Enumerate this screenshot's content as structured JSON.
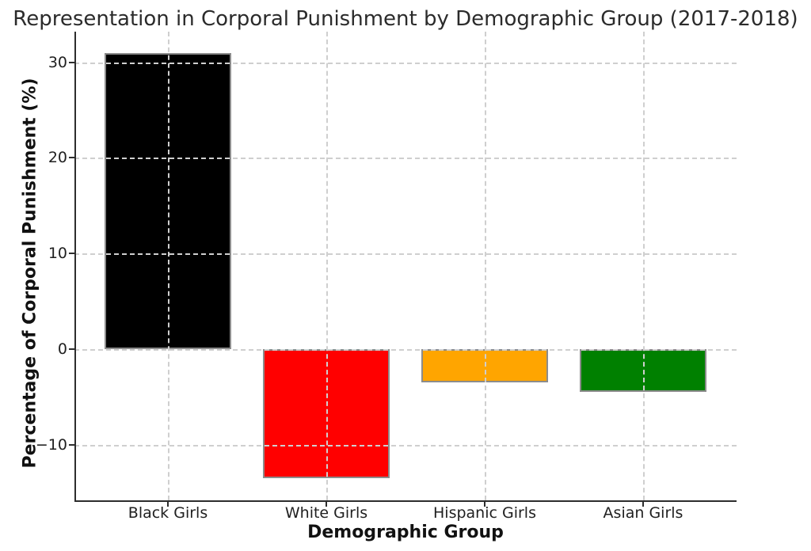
{
  "chart_data": {
    "type": "bar",
    "title": "Representation in Corporal Punishment by Demographic Group (2017-2018)",
    "xlabel": "Demographic Group",
    "ylabel": "Percentage of Corporal Punishment (%)",
    "categories": [
      "Black Girls",
      "White Girls",
      "Hispanic Girls",
      "Asian Girls"
    ],
    "values": [
      31,
      -13.5,
      -3.5,
      -4.5
    ],
    "bar_colors": [
      "#000000",
      "#ff0000",
      "#ffa500",
      "#008000"
    ],
    "bar_edge_color": "#8c8c8c",
    "bar_width": 0.8,
    "yticks": [
      30,
      20,
      10,
      0,
      -10
    ],
    "ytick_labels": [
      "30",
      "20",
      "10",
      "0",
      "−10"
    ],
    "ylim": [
      -15.8,
      33.2
    ],
    "xlim": [
      -0.59,
      3.59
    ],
    "grid": true,
    "grid_style": "dashed",
    "grid_color": "#cfcfcf",
    "grid_above_bars": true,
    "spines_visible": [
      "left",
      "bottom"
    ],
    "spine_color": "#2d2d2d",
    "background_color": "#ffffff",
    "legend_position": "none"
  }
}
